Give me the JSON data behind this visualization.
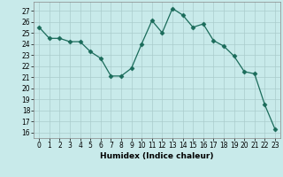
{
  "x": [
    0,
    1,
    2,
    3,
    4,
    5,
    6,
    7,
    8,
    9,
    10,
    11,
    12,
    13,
    14,
    15,
    16,
    17,
    18,
    19,
    20,
    21,
    22,
    23
  ],
  "y": [
    25.5,
    24.5,
    24.5,
    24.2,
    24.2,
    23.3,
    22.7,
    21.1,
    21.1,
    21.8,
    24.0,
    26.1,
    25.0,
    27.2,
    26.6,
    25.5,
    25.8,
    24.3,
    23.8,
    22.9,
    21.5,
    21.3,
    18.5,
    16.3
  ],
  "line_color": "#1a6b5a",
  "marker": "D",
  "marker_size": 2.5,
  "bg_color": "#c8eaea",
  "grid_color": "#aacccc",
  "xlabel": "Humidex (Indice chaleur)",
  "ylim": [
    15.5,
    27.8
  ],
  "xlim": [
    -0.5,
    23.5
  ],
  "yticks": [
    16,
    17,
    18,
    19,
    20,
    21,
    22,
    23,
    24,
    25,
    26,
    27
  ],
  "xticks": [
    0,
    1,
    2,
    3,
    4,
    5,
    6,
    7,
    8,
    9,
    10,
    11,
    12,
    13,
    14,
    15,
    16,
    17,
    18,
    19,
    20,
    21,
    22,
    23
  ],
  "label_fontsize": 6.5,
  "tick_fontsize": 5.5
}
